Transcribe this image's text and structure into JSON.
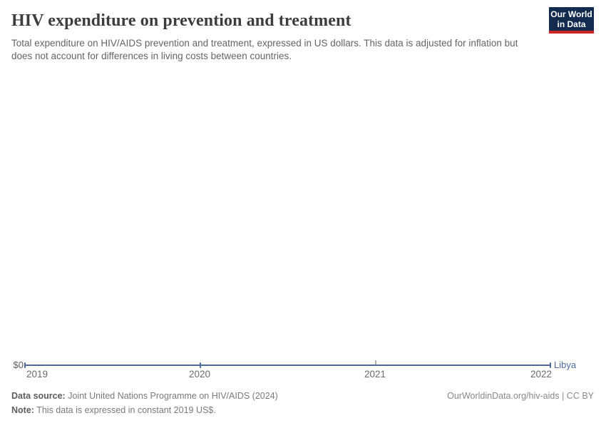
{
  "theme": {
    "line_color": "#4c6a9c",
    "logo_bg": "#122b4e",
    "logo_accent": "#cb2626"
  },
  "header": {
    "title": "HIV expenditure on prevention and treatment",
    "subtitle": "Total expenditure on HIV/AIDS prevention and treatment, expressed in US dollars. This data is adjusted for inflation but does not account for differences in living costs between countries.",
    "logo_line1": "Our World",
    "logo_line2": "in Data"
  },
  "chart_data": {
    "type": "line",
    "title": "HIV expenditure on prevention and treatment",
    "x": [
      2019,
      2020,
      2022
    ],
    "series": [
      {
        "name": "Libya",
        "values": [
          0,
          0,
          0
        ],
        "color": "#4c6a9c"
      }
    ],
    "x_tick_labels": [
      "2019",
      "2020",
      "2021",
      "2022"
    ],
    "y_tick_labels": [
      "$0"
    ],
    "ylim": [
      0,
      null
    ],
    "grid": false,
    "legend": "end-of-line entity label"
  },
  "footer": {
    "data_source_label": "Data source:",
    "data_source": "Joint United Nations Programme on HIV/AIDS (2024)",
    "note_label": "Note:",
    "note": "This data is expressed in constant 2019 US$.",
    "attribution": "OurWorldinData.org/hiv-aids | CC BY"
  }
}
